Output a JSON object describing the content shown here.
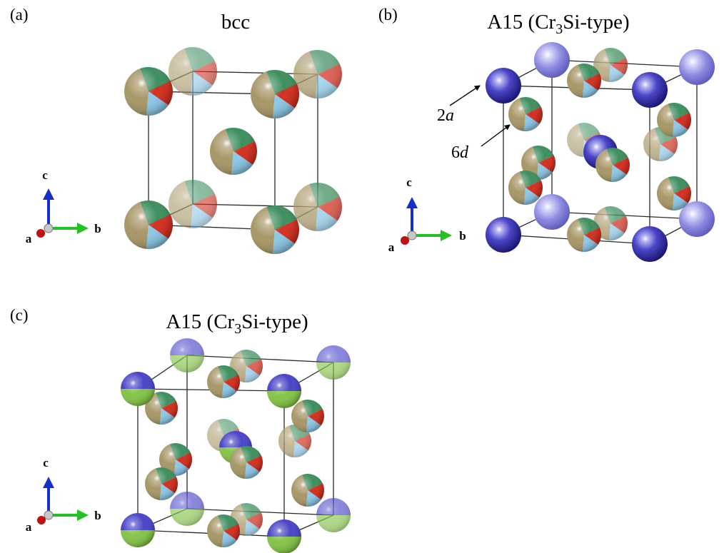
{
  "panels": [
    {
      "letter": "(a)",
      "title": "bcc",
      "formula": null,
      "site_labels": [],
      "atoms": {
        "corners": "mixed",
        "body_center": "mixed"
      }
    },
    {
      "letter": "(b)",
      "title": "A15 (Cr3Si-type)",
      "formula": {
        "prefix": "A15 (Cr",
        "subscript": "3",
        "suffix": "Si-type)"
      },
      "site_labels": [
        {
          "text": "2a",
          "number": "2",
          "letter": "a"
        },
        {
          "text": "6d",
          "number": "6",
          "letter": "d"
        }
      ],
      "atoms": {
        "2a": "blue",
        "6d": "mixed"
      }
    },
    {
      "letter": "(c)",
      "title": "A15 (Cr3Si-type)",
      "formula": {
        "prefix": "A15 (Cr",
        "subscript": "3",
        "suffix": "Si-type)"
      },
      "site_labels": [],
      "atoms": {
        "2a": "blue-green",
        "6d": "mixed"
      }
    }
  ],
  "axes": {
    "labels": [
      "a",
      "b",
      "c"
    ]
  },
  "colors": {
    "mixed_segments": [
      "#a89868",
      "#d43020",
      "#3f8f60",
      "#8ec9e8"
    ],
    "blue_atom": "#4a46c8",
    "blue_green_atom": [
      "#4a46c8",
      "#86c44a"
    ],
    "axis_a": "#c01010",
    "axis_b": "#22c020",
    "axis_c": "#1530c8",
    "edge": "#2a2a2a"
  }
}
